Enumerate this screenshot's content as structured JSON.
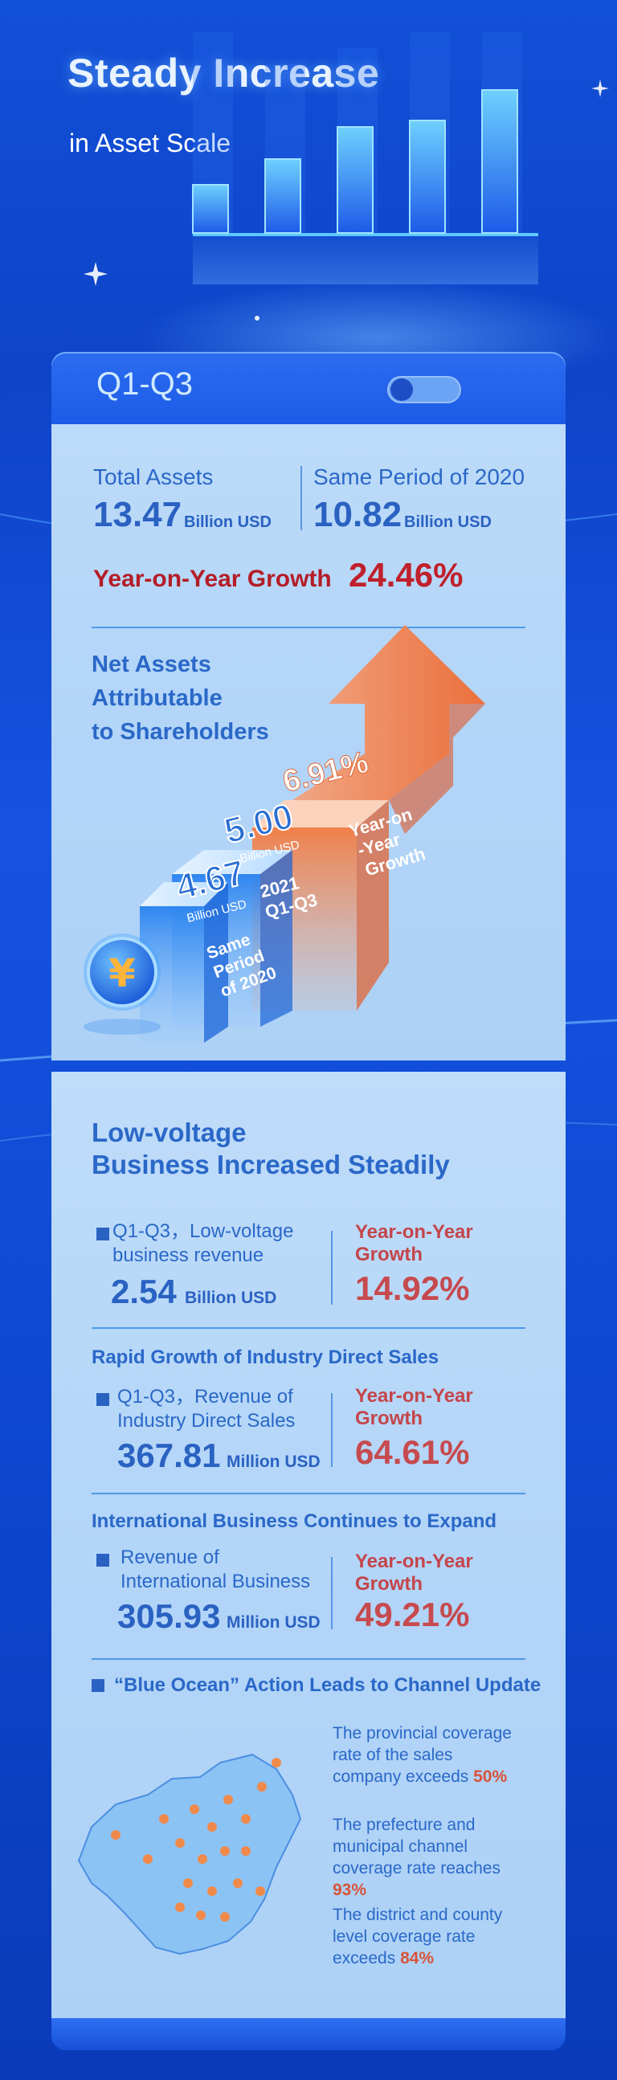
{
  "hero": {
    "title": "Steady Increase",
    "subtitle": "in Asset Scale"
  },
  "q_card": {
    "period_label": "Q1-Q3",
    "total_assets_label": "Total Assets",
    "total_assets_value": "13.47",
    "total_assets_unit": "Billion USD",
    "same_period_label": "Same Period of 2020",
    "same_period_value": "10.82",
    "same_period_unit": "Billion USD",
    "yoy_label": "Year-on-Year Growth",
    "yoy_value": "24.46%",
    "net_assets_title": [
      "Net Assets",
      "Attributable",
      "to Shareholders"
    ],
    "stairs": {
      "step1_value": "4.67",
      "step1_unit": "Billion USD",
      "step1_label": [
        "Same",
        "Period",
        "of 2020"
      ],
      "step2_value": "5.00",
      "step2_unit": "Billion USD",
      "step2_label": [
        "2021",
        "Q1-Q3"
      ],
      "step3_value": "6.91%",
      "step3_label": [
        "Year-on",
        "-Year",
        "Growth"
      ],
      "yuan_symbol": "¥"
    }
  },
  "business": {
    "title_line1": "Low-voltage",
    "title_line2": "Business Increased Steadily",
    "lv": {
      "label_line1": "Q1-Q3，Low-voltage",
      "label_line2": "business revenue",
      "value": "2.54",
      "unit": "Billion USD",
      "yoy_line1": "Year-on-Year",
      "yoy_line2": "Growth",
      "yoy_value": "14.92%"
    },
    "ids": {
      "heading": "Rapid Growth of Industry Direct Sales",
      "label_line1": "Q1-Q3，Revenue of",
      "label_line2": "Industry Direct Sales",
      "value": "367.81",
      "unit": "Million USD",
      "yoy_line1": "Year-on-Year",
      "yoy_line2": "Growth",
      "yoy_value": "64.61%"
    },
    "intl": {
      "heading": "International Business Continues to Expand",
      "label_line1": "Revenue of",
      "label_line2": "International Business",
      "value": "305.93",
      "unit": "Million USD",
      "yoy_line1": "Year-on-Year",
      "yoy_line2": "Growth",
      "yoy_value": "49.21%"
    },
    "blue_ocean": {
      "heading": "“Blue Ocean” Action Leads to Channel Update",
      "item1_text": "The provincial coverage rate of the sales company exceeds",
      "item1_value": "50%",
      "item2_text": "The prefecture and municipal channel coverage rate reaches",
      "item2_value": "93%",
      "item3_text": "The district and county level coverage rate exceeds",
      "item3_value": "84%"
    }
  },
  "colors": {
    "background": "#1150d8",
    "card": "#bfdcf9",
    "text_blue": "#2a68c8",
    "accent_red": "#c0202b",
    "accent_orange": "#f07a45"
  }
}
